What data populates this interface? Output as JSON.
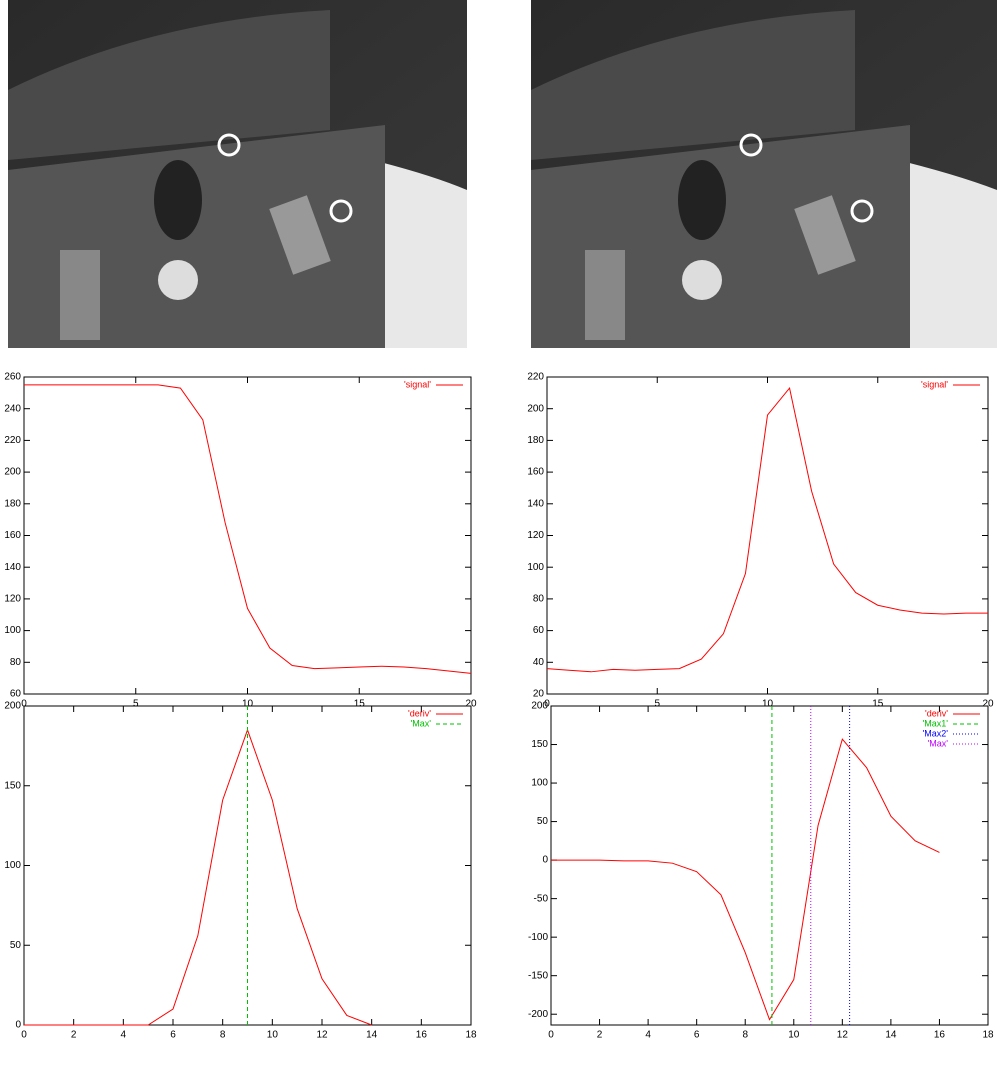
{
  "chart_data": [
    {
      "type": "line",
      "x": [
        0,
        1,
        2,
        3,
        4,
        5,
        6,
        7,
        8,
        9,
        10,
        11,
        12,
        13,
        14,
        15,
        16,
        17,
        18,
        19,
        20
      ],
      "series": [
        {
          "name": "'signal'",
          "color": "#ff0000",
          "values": [
            255,
            255,
            255,
            255,
            255,
            255,
            255,
            253,
            233,
            168,
            114,
            89,
            78,
            76,
            76.5,
            77,
            77.5,
            77,
            76,
            74.5,
            73
          ]
        }
      ],
      "xlim": [
        0,
        20
      ],
      "xticks": [
        0,
        5,
        10,
        15,
        20
      ],
      "ylim": [
        60,
        260
      ],
      "yticks": [
        60,
        80,
        100,
        120,
        140,
        160,
        180,
        200,
        220,
        240,
        260
      ]
    },
    {
      "type": "line",
      "x": [
        0,
        1,
        2,
        3,
        4,
        5,
        6,
        7,
        8,
        9,
        10,
        11,
        12,
        13,
        14,
        15,
        16,
        17,
        18,
        19,
        20
      ],
      "series": [
        {
          "name": "'signal'",
          "color": "#ff0000",
          "values": [
            36,
            35,
            34,
            35.5,
            35,
            35.5,
            36,
            42,
            58,
            96,
            196,
            213,
            148,
            102,
            84,
            76,
            73,
            71,
            70.5,
            71,
            71
          ]
        }
      ],
      "xlim": [
        0,
        20
      ],
      "xticks": [
        0,
        5,
        10,
        15,
        20
      ],
      "ylim": [
        20,
        220
      ],
      "yticks": [
        20,
        40,
        60,
        80,
        100,
        120,
        140,
        160,
        180,
        200,
        220
      ]
    },
    {
      "type": "line",
      "x": [
        0,
        1,
        2,
        3,
        4,
        5,
        6,
        7,
        8,
        9,
        10,
        11,
        12,
        13,
        14
      ],
      "series": [
        {
          "name": "'deriv'",
          "color": "#ff0000",
          "values": [
            0,
            0,
            0,
            0,
            0,
            0,
            10,
            56,
            141,
            185,
            141,
            73,
            29,
            6,
            0
          ]
        }
      ],
      "vlines": [
        {
          "name": "'Max'",
          "color": "#00c000",
          "x": 9,
          "dash": "4,3"
        }
      ],
      "xlim": [
        0,
        18
      ],
      "xticks": [
        0,
        2,
        4,
        6,
        8,
        10,
        12,
        14,
        16,
        18
      ],
      "ylim": [
        0,
        200
      ],
      "yticks": [
        0,
        50,
        100,
        150,
        200
      ]
    },
    {
      "type": "line",
      "x": [
        0,
        1,
        2,
        3,
        4,
        5,
        6,
        7,
        8,
        9,
        10,
        11,
        12,
        13,
        14,
        15,
        16
      ],
      "series": [
        {
          "name": "'deriv'",
          "color": "#ff0000",
          "values": [
            0,
            0,
            0,
            -1,
            -1,
            -4,
            -15,
            -45,
            -120,
            -207,
            -155,
            45,
            157,
            120,
            57,
            25,
            10
          ]
        }
      ],
      "vlines": [
        {
          "name": "'Max1'",
          "color": "#00c000",
          "x": 9.1,
          "dash": "4,3"
        },
        {
          "name": "'Max2'",
          "color": "#0000ff",
          "x": 12.3,
          "dash": "1,2"
        },
        {
          "name": "'Max'",
          "color": "#c000ff",
          "x": 10.7,
          "dash": "1,2"
        }
      ],
      "xlim": [
        0,
        18
      ],
      "xticks": [
        0,
        2,
        4,
        6,
        8,
        10,
        12,
        14,
        16,
        18
      ],
      "ylim": [
        -214,
        200
      ],
      "yticks": [
        -200,
        -150,
        -100,
        -50,
        0,
        50,
        100,
        150,
        200
      ]
    }
  ]
}
